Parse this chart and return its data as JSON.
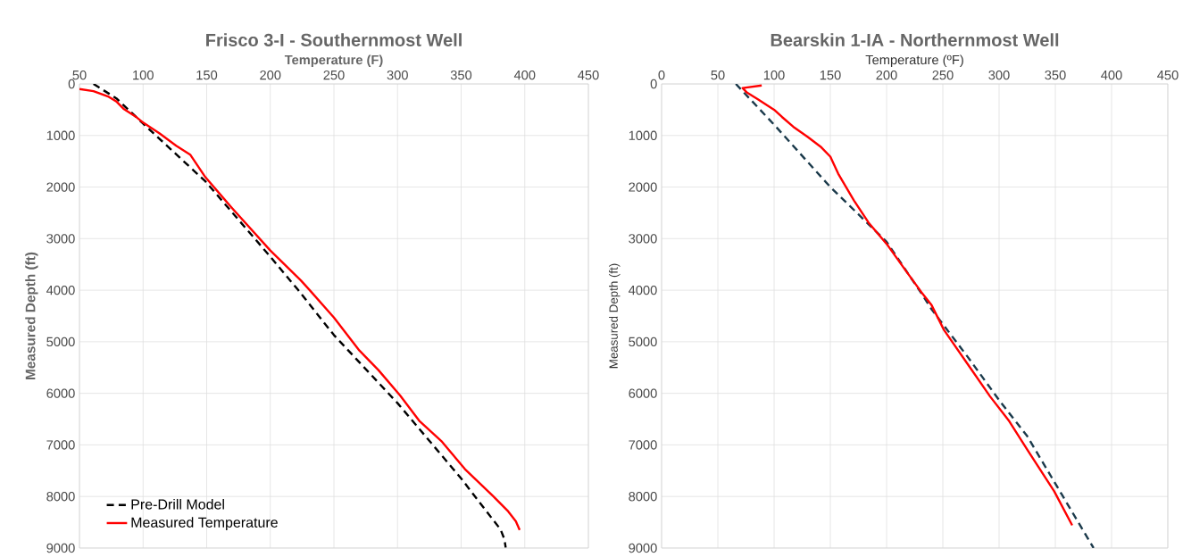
{
  "chart_data": [
    {
      "type": "line",
      "title": "Frisco 3-I - Southernmost Well",
      "xlabel": "Temperature (F)",
      "ylabel": "Measured Depth (ft)",
      "xlim": [
        50,
        450
      ],
      "xticks": [
        50,
        100,
        150,
        200,
        250,
        300,
        350,
        400,
        450
      ],
      "ylim": [
        9000,
        0
      ],
      "yticks": [
        0,
        1000,
        2000,
        3000,
        4000,
        5000,
        6000,
        7000,
        8000,
        9000
      ],
      "grid": true,
      "legend": "bottom left",
      "series": [
        {
          "name": "Pre-Drill Model",
          "color": "#000000",
          "line_style": "dashed",
          "x": [
            61,
            79,
            100,
            149,
            200,
            222,
            250,
            300,
            350,
            369,
            381,
            384,
            385
          ],
          "values": [
            0,
            280,
            770,
            1890,
            3350,
            4000,
            4870,
            6190,
            7650,
            8260,
            8640,
            8830,
            8990
          ]
        },
        {
          "name": "Measured Temperature",
          "color": "#ff0000",
          "line_style": "solid",
          "x": [
            50,
            61,
            73,
            79,
            85,
            94,
            100,
            113,
            126,
            137,
            149,
            170,
            200,
            224,
            231,
            250,
            270,
            285,
            302,
            317,
            335,
            353,
            375,
            387,
            393,
            396
          ],
          "values": [
            100,
            140,
            250,
            340,
            490,
            630,
            750,
            960,
            1200,
            1370,
            1810,
            2410,
            3230,
            3810,
            4000,
            4530,
            5170,
            5550,
            6040,
            6530,
            6940,
            7470,
            7990,
            8290,
            8480,
            8650
          ]
        }
      ]
    },
    {
      "type": "line",
      "title": "Bearskin 1-IA - Northernmost Well",
      "xlabel": "Temperature (ºF)",
      "ylabel": "Measured Depth (ft)",
      "xlim": [
        0,
        450
      ],
      "xticks": [
        0,
        50,
        100,
        150,
        200,
        250,
        300,
        350,
        400,
        450
      ],
      "ylim": [
        9000,
        0
      ],
      "yticks": [
        0,
        1000,
        2000,
        3000,
        4000,
        5000,
        6000,
        7000,
        8000,
        9000
      ],
      "grid": true,
      "series": [
        {
          "color": "#1b3a4b",
          "line_style": "dashed",
          "x": [
            66,
            100,
            150,
            200,
            230,
            240,
            272,
            300,
            325,
            356,
            384
          ],
          "values": [
            0,
            790,
            2000,
            3060,
            4030,
            4370,
            5290,
            6130,
            6830,
            7970,
            9000
          ]
        },
        {
          "color": "#ff0000",
          "line_style": "solid",
          "x": [
            89,
            72,
            76,
            85,
            100,
            107,
            117,
            130,
            142,
            150,
            157,
            171,
            184,
            201,
            218,
            231,
            240,
            251,
            272,
            292,
            309,
            325,
            349,
            365
          ],
          "values": [
            30,
            80,
            170,
            290,
            500,
            640,
            830,
            1030,
            1230,
            1410,
            1740,
            2260,
            2690,
            3130,
            3650,
            4040,
            4290,
            4770,
            5430,
            6060,
            6540,
            7090,
            7900,
            8560
          ]
        }
      ]
    }
  ]
}
